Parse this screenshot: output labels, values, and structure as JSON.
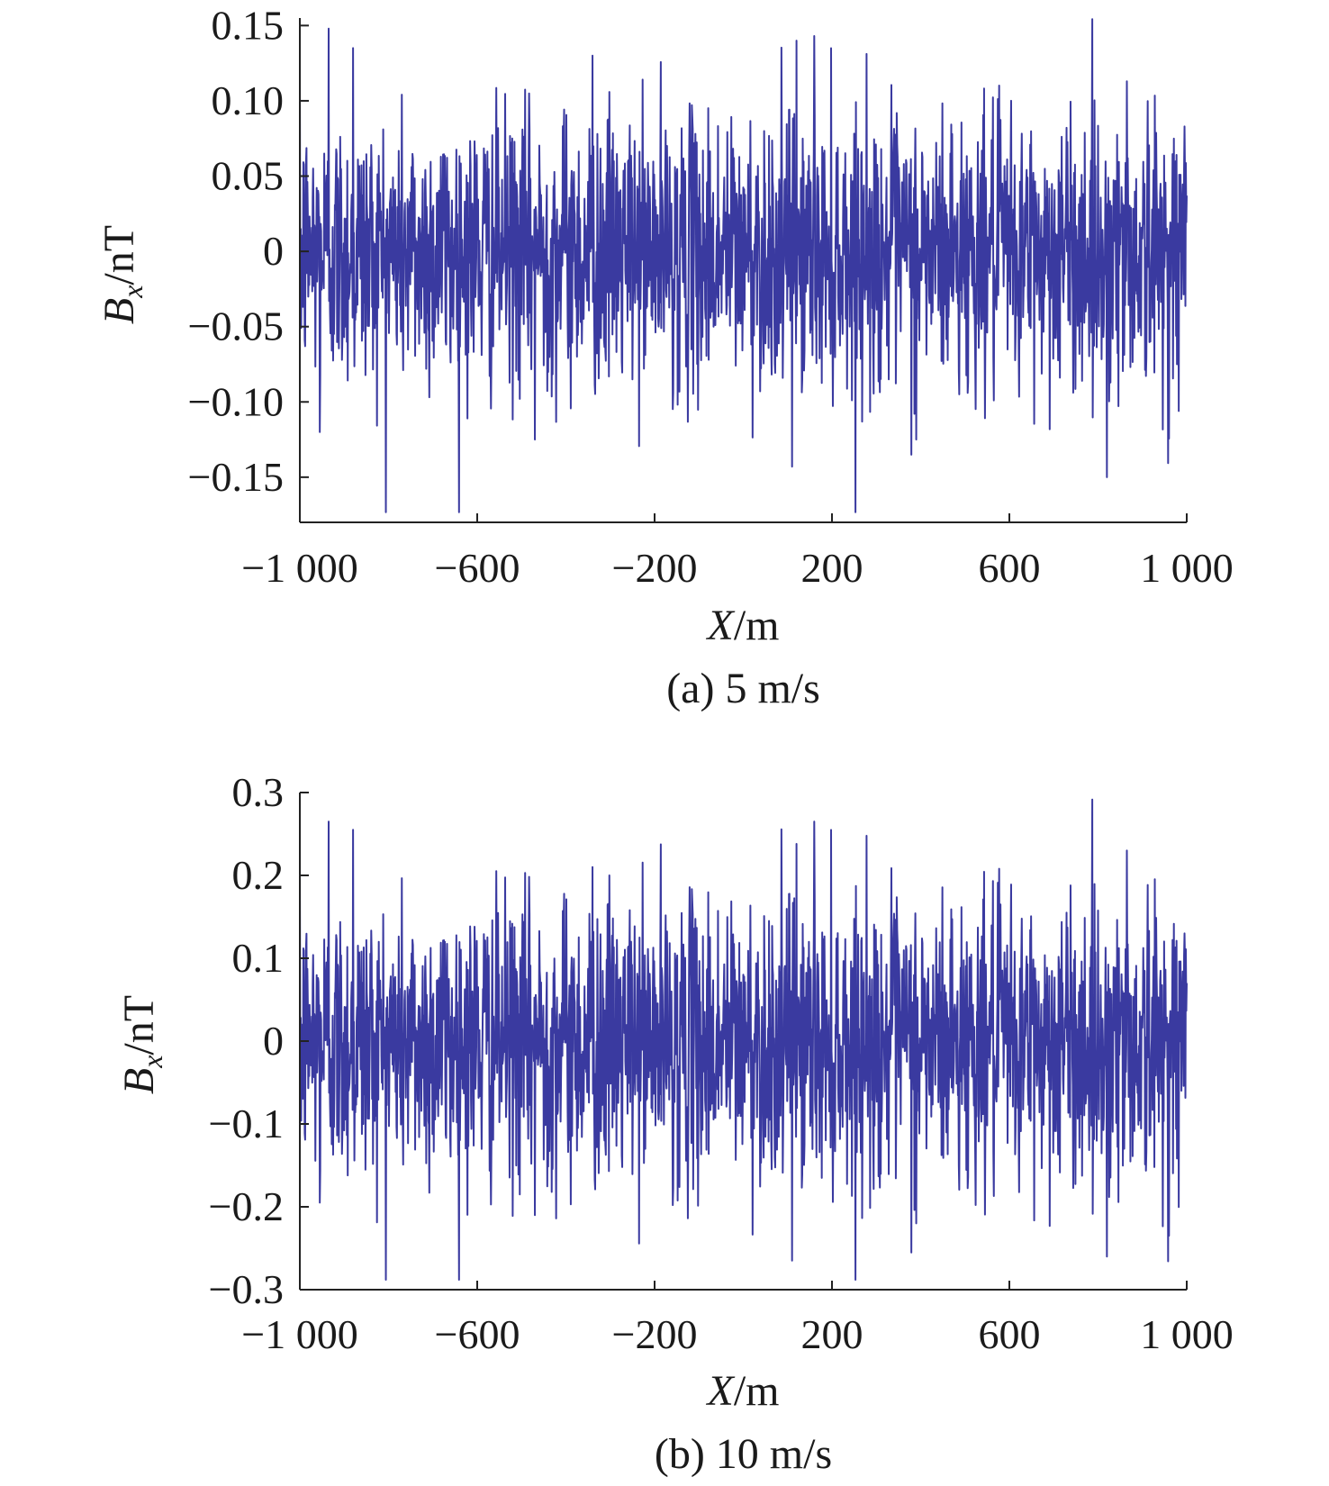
{
  "chart_data": [
    {
      "type": "line",
      "caption": "(a) 5 m/s",
      "xlabel": {
        "italic": "X",
        "rest": "/m"
      },
      "ylabel": {
        "italic": "B",
        "sub": "x",
        "rest": "/nT"
      },
      "xlim": [
        -1000,
        1000
      ],
      "ylim": [
        -0.18,
        0.155
      ],
      "xticks": [
        -1000,
        -600,
        -200,
        200,
        600,
        1000
      ],
      "xtick_labels": [
        "−1 000",
        "−600",
        "−200",
        "200",
        "600",
        "1 000"
      ],
      "yticks": [
        0.15,
        0.1,
        0.05,
        0,
        -0.05,
        -0.1,
        -0.15
      ],
      "ytick_labels": [
        "0.15",
        "0.10",
        "0.05",
        "0",
        "−0.05",
        "−0.10",
        "−0.15"
      ],
      "grid": false,
      "line_color": "#3a3aa0",
      "series": [
        {
          "description_of_signal": "dense zero-mean noise",
          "x_range": [
            -1000,
            1000
          ],
          "n_points": 2001,
          "approx_std": 0.045,
          "peaks": [
            {
              "x": -935,
              "y": 0.148
            },
            {
              "x": -880,
              "y": 0.135
            },
            {
              "x": -955,
              "y": -0.12
            },
            {
              "x": -470,
              "y": -0.125
            },
            {
              "x": -340,
              "y": 0.13
            },
            {
              "x": 120,
              "y": 0.14
            },
            {
              "x": 160,
              "y": 0.143
            },
            {
              "x": 110,
              "y": -0.143
            },
            {
              "x": 390,
              "y": -0.125
            },
            {
              "x": 820,
              "y": -0.15
            },
            {
              "x": 865,
              "y": 0.113
            },
            {
              "x": 995,
              "y": 0.083
            }
          ]
        }
      ]
    },
    {
      "type": "line",
      "caption": "(b) 10 m/s",
      "xlabel": {
        "italic": "X",
        "rest": "/m"
      },
      "ylabel": {
        "italic": "B",
        "sub": "x",
        "rest": "/nT"
      },
      "xlim": [
        -1000,
        1000
      ],
      "ylim": [
        -0.3,
        0.3
      ],
      "xticks": [
        -1000,
        -600,
        -200,
        200,
        600,
        1000
      ],
      "xtick_labels": [
        "−1 000",
        "−600",
        "−200",
        "200",
        "600",
        "1 000"
      ],
      "yticks": [
        0.3,
        0.2,
        0.1,
        0,
        -0.1,
        -0.2,
        -0.3
      ],
      "ytick_labels": [
        "0.3",
        "0.2",
        "0.1",
        "0",
        "−0.1",
        "−0.2",
        "−0.3"
      ],
      "grid": false,
      "line_color": "#3a3aa0",
      "series": [
        {
          "description_of_signal": "dense zero-mean noise",
          "x_range": [
            -1000,
            1000
          ],
          "n_points": 2001,
          "approx_std": 0.085,
          "peaks": [
            {
              "x": -935,
              "y": 0.265
            },
            {
              "x": -880,
              "y": 0.255
            },
            {
              "x": -955,
              "y": -0.195
            },
            {
              "x": -470,
              "y": -0.21
            },
            {
              "x": -340,
              "y": 0.21
            },
            {
              "x": 120,
              "y": 0.238
            },
            {
              "x": 160,
              "y": 0.265
            },
            {
              "x": 110,
              "y": -0.265
            },
            {
              "x": 390,
              "y": -0.22
            },
            {
              "x": 820,
              "y": -0.26
            },
            {
              "x": 865,
              "y": 0.23
            },
            {
              "x": 995,
              "y": 0.13
            }
          ]
        }
      ]
    }
  ]
}
